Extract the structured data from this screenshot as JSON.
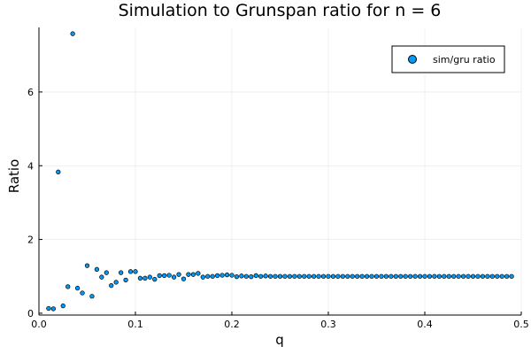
{
  "chart_data": {
    "type": "scatter",
    "title": "Simulation to Grunspan ratio for n = 6",
    "xlabel": "q",
    "ylabel": "Ratio",
    "xlim": [
      0,
      0.5
    ],
    "ylim": [
      -0.05,
      7.75
    ],
    "xticks": [
      "0.0",
      "0.1",
      "0.2",
      "0.3",
      "0.4",
      "0.5"
    ],
    "yticks": [
      "0",
      "2",
      "4",
      "6"
    ],
    "grid": true,
    "legend_position": "top-right",
    "marker_color": "#009AFA",
    "series": [
      {
        "name": "sim/gru ratio",
        "x": [
          0.01,
          0.015,
          0.02,
          0.025,
          0.03,
          0.035,
          0.04,
          0.045,
          0.05,
          0.055,
          0.06,
          0.065,
          0.07,
          0.075,
          0.08,
          0.085,
          0.09,
          0.095,
          0.1,
          0.105,
          0.11,
          0.115,
          0.12,
          0.125,
          0.13,
          0.135,
          0.14,
          0.145,
          0.15,
          0.155,
          0.16,
          0.165,
          0.17,
          0.175,
          0.18,
          0.185,
          0.19,
          0.195,
          0.2,
          0.205,
          0.21,
          0.215,
          0.22,
          0.225,
          0.23,
          0.235,
          0.24,
          0.245,
          0.25,
          0.255,
          0.26,
          0.265,
          0.27,
          0.275,
          0.28,
          0.285,
          0.29,
          0.295,
          0.3,
          0.305,
          0.31,
          0.315,
          0.32,
          0.325,
          0.33,
          0.335,
          0.34,
          0.345,
          0.35,
          0.355,
          0.36,
          0.365,
          0.37,
          0.375,
          0.38,
          0.385,
          0.39,
          0.395,
          0.4,
          0.405,
          0.41,
          0.415,
          0.42,
          0.425,
          0.43,
          0.435,
          0.44,
          0.445,
          0.45,
          0.455,
          0.46,
          0.465,
          0.47,
          0.475,
          0.48,
          0.485,
          0.49
        ],
        "y": [
          0.13,
          0.12,
          3.83,
          0.2,
          0.72,
          7.58,
          0.68,
          0.55,
          1.29,
          0.46,
          1.19,
          0.98,
          1.1,
          0.75,
          0.84,
          1.1,
          0.9,
          1.13,
          1.13,
          0.95,
          0.95,
          0.98,
          0.92,
          1.02,
          1.02,
          1.03,
          0.98,
          1.05,
          0.93,
          1.05,
          1.05,
          1.08,
          0.98,
          1.0,
          1.0,
          1.02,
          1.03,
          1.04,
          1.03,
          0.99,
          1.01,
          1.0,
          0.99,
          1.02,
          1.0,
          1.01,
          1.0,
          1.0,
          1.0,
          1.0,
          1.0,
          1.0,
          1.0,
          1.0,
          1.0,
          1.0,
          1.0,
          1.0,
          1.0,
          1.0,
          1.0,
          1.0,
          1.0,
          1.0,
          1.0,
          1.0,
          1.0,
          1.0,
          1.0,
          1.0,
          1.0,
          1.0,
          1.0,
          1.0,
          1.0,
          1.0,
          1.0,
          1.0,
          1.0,
          1.0,
          1.0,
          1.0,
          1.0,
          1.0,
          1.0,
          1.0,
          1.0,
          1.0,
          1.0,
          1.0,
          1.0,
          1.0,
          1.0,
          1.0,
          1.0,
          1.0,
          1.0
        ]
      }
    ]
  }
}
